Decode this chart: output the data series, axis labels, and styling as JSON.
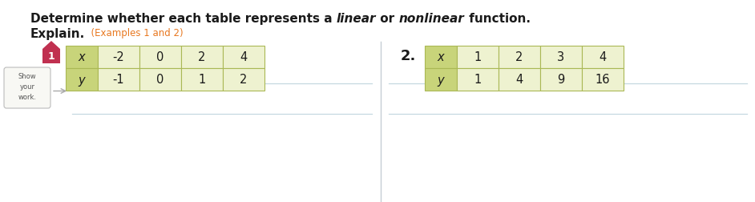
{
  "background_color": "#ffffff",
  "title_parts": [
    {
      "text": "Determine whether each table represents a ",
      "bold": true,
      "italic": false,
      "color": "#1a1a1a"
    },
    {
      "text": "linear",
      "bold": true,
      "italic": true,
      "color": "#1a1a1a"
    },
    {
      "text": " or ",
      "bold": true,
      "italic": false,
      "color": "#1a1a1a"
    },
    {
      "text": "nonlinear",
      "bold": true,
      "italic": true,
      "color": "#1a1a1a"
    },
    {
      "text": " function.",
      "bold": true,
      "italic": false,
      "color": "#1a1a1a"
    }
  ],
  "subtitle_bold": "Explain.",
  "subtitle_orange": "  (Examples 1 and 2)",
  "table1": {
    "x_values": [
      "-2",
      "0",
      "2",
      "4"
    ],
    "y_values": [
      "-1",
      "0",
      "1",
      "2"
    ],
    "header_bg": "#c8d47a",
    "cell_bg": "#eef2d0",
    "border_color": "#aab855"
  },
  "table2": {
    "x_values": [
      "1",
      "2",
      "3",
      "4"
    ],
    "y_values": [
      "1",
      "4",
      "9",
      "16"
    ],
    "header_bg": "#c8d47a",
    "cell_bg": "#eef2d0",
    "border_color": "#aab855"
  },
  "badge_color": "#c03050",
  "show_work_text": "Show\nyour\nwork.",
  "line_color": "#c5d8e0",
  "orange_color": "#e87820",
  "divider_color": "#c5cdd5",
  "title_fontsize": 11,
  "subtitle_fontsize": 11,
  "table_fontsize": 10.5
}
